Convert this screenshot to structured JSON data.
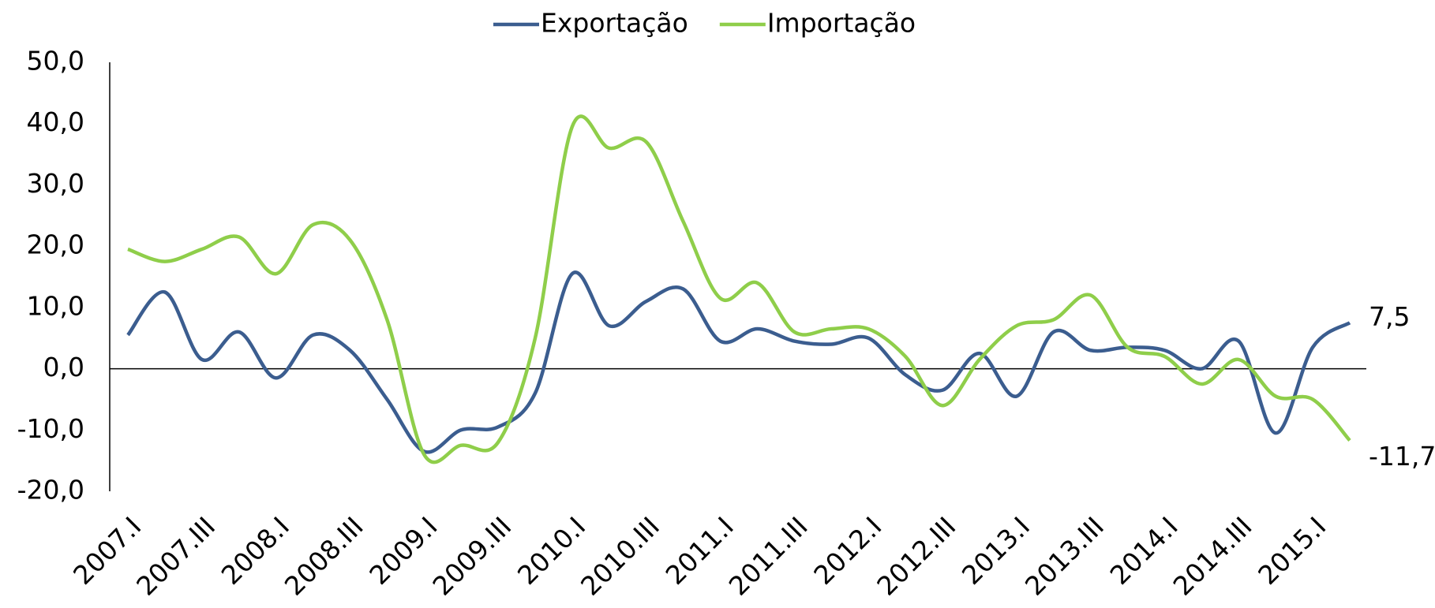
{
  "chart_data": {
    "type": "line",
    "categories": [
      "2007.I",
      null,
      "2007.III",
      null,
      "2008.I",
      null,
      "2008.III",
      null,
      "2009.I",
      null,
      "2009.III",
      null,
      "2010.I",
      null,
      "2010.III",
      null,
      "2011.I",
      null,
      "2011.III",
      null,
      "2012.I",
      null,
      "2012.III",
      null,
      "2013.I",
      null,
      "2013.III",
      null,
      "2014.I",
      null,
      "2014.III",
      null,
      "2015.I",
      null
    ],
    "series": [
      {
        "name": "Exportação",
        "color": "#3b5d8f",
        "values": [
          5.5,
          12.5,
          1.5,
          6,
          -1.5,
          5.5,
          3,
          -5,
          -13.5,
          -10,
          -9.5,
          -4,
          15.5,
          7,
          11,
          13,
          4.5,
          6.5,
          4.5,
          4,
          5,
          -1,
          -3.5,
          2.5,
          -4.5,
          6,
          3,
          3.5,
          3,
          0,
          4.5,
          -10.5,
          3.5,
          7.5
        ],
        "value_labels": [
          null,
          null,
          null,
          null,
          null,
          null,
          null,
          null,
          null,
          null,
          null,
          null,
          null,
          null,
          null,
          null,
          null,
          null,
          null,
          null,
          null,
          null,
          null,
          null,
          null,
          null,
          null,
          null,
          null,
          null,
          null,
          null,
          null,
          "7,5"
        ]
      },
      {
        "name": "Importação",
        "color": "#8fce4a",
        "values": [
          19.5,
          17.5,
          19.5,
          21.5,
          15.5,
          23.5,
          21,
          8,
          -14,
          -12.5,
          -12,
          5,
          39.5,
          36,
          37,
          24,
          11.5,
          14,
          6,
          6.5,
          6.5,
          2,
          -6,
          1.5,
          7,
          8,
          12,
          3.5,
          2,
          -2.5,
          1.5,
          -4.5,
          -5,
          -11.7
        ],
        "value_labels": [
          null,
          null,
          null,
          null,
          null,
          null,
          null,
          null,
          null,
          null,
          null,
          null,
          null,
          null,
          null,
          null,
          null,
          null,
          null,
          null,
          null,
          null,
          null,
          null,
          null,
          null,
          null,
          null,
          null,
          null,
          null,
          null,
          null,
          "-11,7"
        ]
      }
    ],
    "ylim": [
      -20,
      50
    ],
    "yticks": [
      {
        "value": -20,
        "label": "-20,0"
      },
      {
        "value": -10,
        "label": "-10,0"
      },
      {
        "value": 0,
        "label": "0,0"
      },
      {
        "value": 10,
        "label": "10,0"
      },
      {
        "value": 20,
        "label": "20,0"
      },
      {
        "value": 30,
        "label": "30,0"
      },
      {
        "value": 40,
        "label": "40,0"
      },
      {
        "value": 50,
        "label": "50,0"
      }
    ],
    "grid": false,
    "legend": "top"
  }
}
